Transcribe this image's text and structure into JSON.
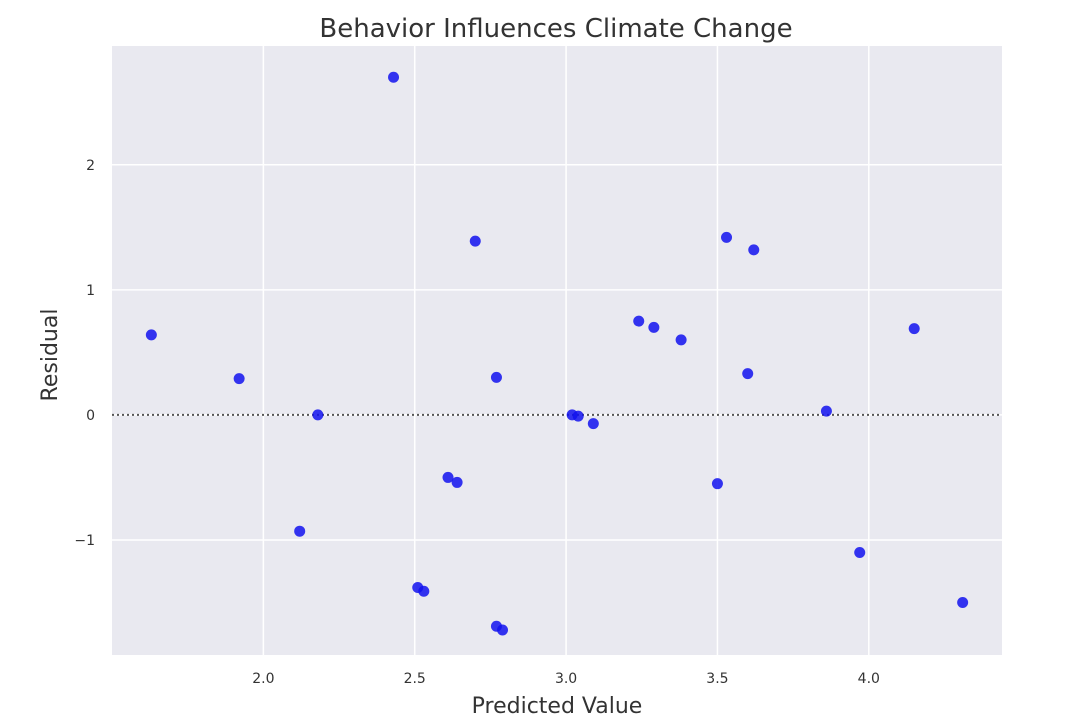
{
  "chart_data": {
    "type": "scatter",
    "title": "Behavior Influences Climate Change",
    "xlabel": "Predicted Value",
    "ylabel": "Residual",
    "xlim": [
      1.5,
      4.44
    ],
    "ylim": [
      -1.92,
      2.95
    ],
    "xticks": [
      2.0,
      2.5,
      3.0,
      3.5,
      4.0
    ],
    "xtick_labels": [
      "2.0",
      "2.5",
      "3.0",
      "3.5",
      "4.0"
    ],
    "yticks": [
      -1,
      0,
      1,
      2
    ],
    "ytick_labels": [
      "−1",
      "0",
      "1",
      "2"
    ],
    "grid": true,
    "background": "#e9e9f0",
    "grid_color": "#ffffff",
    "point_color": "#1212ee",
    "reference_line": {
      "y": 0,
      "style": "dotted",
      "color": "#555555"
    },
    "points": [
      {
        "x": 1.63,
        "y": 0.64
      },
      {
        "x": 1.92,
        "y": 0.29
      },
      {
        "x": 2.12,
        "y": -0.93
      },
      {
        "x": 2.18,
        "y": 0.0
      },
      {
        "x": 2.43,
        "y": 2.7
      },
      {
        "x": 2.51,
        "y": -1.38
      },
      {
        "x": 2.53,
        "y": -1.41
      },
      {
        "x": 2.61,
        "y": -0.5
      },
      {
        "x": 2.64,
        "y": -0.54
      },
      {
        "x": 2.7,
        "y": 1.39
      },
      {
        "x": 2.77,
        "y": 0.3
      },
      {
        "x": 2.77,
        "y": -1.69
      },
      {
        "x": 2.79,
        "y": -1.72
      },
      {
        "x": 3.02,
        "y": 0.0
      },
      {
        "x": 3.04,
        "y": -0.01
      },
      {
        "x": 3.09,
        "y": -0.07
      },
      {
        "x": 3.24,
        "y": 0.75
      },
      {
        "x": 3.29,
        "y": 0.7
      },
      {
        "x": 3.38,
        "y": 0.6
      },
      {
        "x": 3.5,
        "y": -0.55
      },
      {
        "x": 3.53,
        "y": 1.42
      },
      {
        "x": 3.6,
        "y": 0.33
      },
      {
        "x": 3.62,
        "y": 1.32
      },
      {
        "x": 3.86,
        "y": 0.03
      },
      {
        "x": 3.97,
        "y": -1.1
      },
      {
        "x": 4.15,
        "y": 0.69
      },
      {
        "x": 4.31,
        "y": -1.5
      }
    ]
  }
}
